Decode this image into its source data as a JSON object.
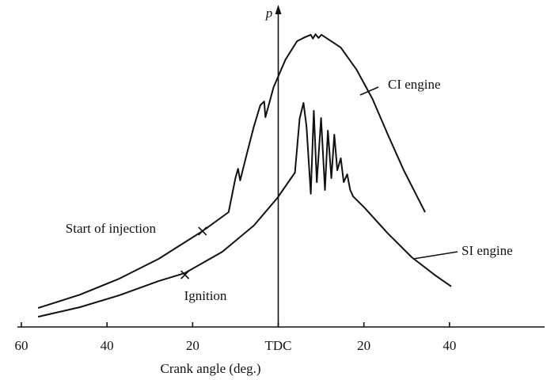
{
  "chart_data": {
    "type": "line",
    "x_label": "Crank angle (deg.)",
    "y_label": "p",
    "xlim": [
      -60,
      60
    ],
    "ylim": [
      0,
      100
    ],
    "xticks": [
      {
        "value": -60,
        "label": "60"
      },
      {
        "value": -40,
        "label": "40"
      },
      {
        "value": -20,
        "label": "20"
      },
      {
        "value": 0,
        "label": "TDC"
      },
      {
        "value": 20,
        "label": "20"
      },
      {
        "value": 40,
        "label": "40"
      }
    ],
    "series": [
      {
        "name": "CI engine",
        "color": "#111111",
        "x": [
          -56.1,
          -46.3,
          -37.1,
          -27.9,
          -17.7,
          -11.6,
          -10,
          -9.4,
          -8.9,
          -7.6,
          -5.7,
          -4.2,
          -3.3,
          -3,
          -1.1,
          1.7,
          4.4,
          6.3,
          7.6,
          8.1,
          8.7,
          9.4,
          10.1,
          10.9,
          14.6,
          18.3,
          22,
          25.6,
          29.3,
          34.3
        ],
        "values": [
          6.5,
          11.1,
          16.6,
          23.4,
          32.9,
          39.4,
          51.1,
          54.3,
          50.3,
          57.9,
          68.8,
          76.1,
          77.4,
          72,
          82.3,
          91.8,
          98.1,
          99.5,
          100.3,
          99,
          100.5,
          99.2,
          100.3,
          99.5,
          95.9,
          88.3,
          78.3,
          66,
          53.8,
          39.4
        ]
      },
      {
        "name": "SI engine",
        "color": "#111111",
        "x": [
          -56.1,
          -46.3,
          -37.1,
          -27.9,
          -21.8,
          -13.1,
          -5.7,
          -0.2,
          3.9,
          5,
          5.9,
          6.6,
          7.6,
          8.3,
          9,
          10,
          10.9,
          11.6,
          12.4,
          13.1,
          13.8,
          14.6,
          15.3,
          16.1,
          16.8,
          17.5,
          20.1,
          25.6,
          31.2,
          36.7,
          40.4
        ],
        "values": [
          3.5,
          6.8,
          10.9,
          15.8,
          18.5,
          25.8,
          34.8,
          44.3,
          53,
          71.5,
          76.9,
          68.8,
          45.7,
          74.2,
          49.7,
          71.7,
          47,
          67.4,
          51.1,
          66,
          53.8,
          57.9,
          49.7,
          52.4,
          47,
          44.8,
          41,
          32.1,
          23.9,
          17.7,
          13.9
        ]
      }
    ],
    "annotations": [
      {
        "text": "Start of injection",
        "x": -17.7,
        "y": 32.9
      },
      {
        "text": "Ignition",
        "x": -21.8,
        "y": 17.9
      }
    ]
  }
}
